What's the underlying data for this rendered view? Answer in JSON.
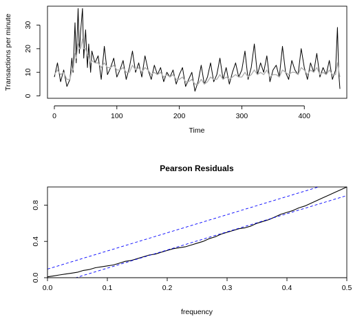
{
  "chart_data": [
    {
      "type": "line",
      "title": "",
      "xlabel": "Time",
      "ylabel": "Transactions  per minute",
      "xlim": [
        -11,
        468
      ],
      "ylim": [
        -1,
        38
      ],
      "x_ticks": [
        0,
        100,
        200,
        300,
        400
      ],
      "y_ticks": [
        0,
        10,
        20,
        30
      ],
      "x_tick_labels": [
        "0",
        "100",
        "200",
        "300",
        "400"
      ],
      "y_tick_labels": [
        "0",
        "10",
        "20",
        "30"
      ],
      "grid": false,
      "legend": "none",
      "series": [
        {
          "style": "observed",
          "color": "#000000",
          "x": [
            0,
            5,
            10,
            15,
            20,
            25,
            28,
            30,
            33,
            35,
            38,
            40,
            42,
            45,
            47,
            50,
            53,
            55,
            58,
            60,
            65,
            70,
            75,
            80,
            85,
            90,
            95,
            100,
            105,
            110,
            115,
            120,
            125,
            130,
            135,
            140,
            145,
            150,
            155,
            160,
            165,
            170,
            175,
            180,
            185,
            190,
            195,
            200,
            205,
            210,
            215,
            220,
            225,
            230,
            235,
            240,
            245,
            250,
            255,
            260,
            265,
            270,
            275,
            280,
            285,
            290,
            295,
            300,
            305,
            310,
            315,
            320,
            325,
            330,
            335,
            340,
            345,
            350,
            355,
            360,
            365,
            370,
            375,
            380,
            385,
            390,
            395,
            400,
            405,
            410,
            415,
            420,
            425,
            430,
            435,
            440,
            445,
            450,
            453,
            455,
            457
          ],
          "y": [
            8,
            14,
            6,
            11,
            4,
            7,
            16,
            10,
            31,
            14,
            37,
            18,
            27,
            37,
            16,
            28,
            12,
            22,
            10,
            19,
            14,
            17,
            7,
            21,
            9,
            12,
            16,
            8,
            11,
            15,
            7,
            12,
            19,
            10,
            14,
            8,
            17,
            11,
            7,
            13,
            9,
            12,
            6,
            10,
            8,
            11,
            5,
            9,
            12,
            4,
            7,
            10,
            2,
            6,
            13,
            5,
            8,
            14,
            6,
            9,
            16,
            7,
            12,
            5,
            10,
            14,
            8,
            11,
            19,
            7,
            12,
            22,
            9,
            14,
            10,
            17,
            6,
            11,
            13,
            8,
            21,
            10,
            7,
            15,
            11,
            9,
            20,
            12,
            7,
            14,
            10,
            18,
            8,
            12,
            9,
            15,
            7,
            11,
            29,
            10,
            3
          ]
        },
        {
          "style": "fitted",
          "color": "#b0b0b0",
          "x": [
            0,
            5,
            10,
            15,
            20,
            25,
            28,
            30,
            33,
            35,
            38,
            40,
            42,
            45,
            47,
            50,
            53,
            55,
            58,
            60,
            65,
            70,
            75,
            80,
            85,
            90,
            95,
            100,
            105,
            110,
            115,
            120,
            125,
            130,
            135,
            140,
            145,
            150,
            155,
            160,
            165,
            170,
            175,
            180,
            185,
            190,
            195,
            200,
            205,
            210,
            215,
            220,
            225,
            230,
            235,
            240,
            245,
            250,
            255,
            260,
            265,
            270,
            275,
            280,
            285,
            290,
            295,
            300,
            305,
            310,
            315,
            320,
            325,
            330,
            335,
            340,
            345,
            350,
            355,
            360,
            365,
            370,
            375,
            380,
            385,
            390,
            395,
            400,
            405,
            410,
            415,
            420,
            425,
            430,
            435,
            440,
            445,
            450,
            453,
            455,
            457
          ],
          "y": [
            9,
            11,
            9,
            10,
            7,
            7,
            11,
            11,
            18,
            16,
            22,
            20,
            20,
            24,
            20,
            20,
            17,
            17,
            14,
            15,
            14,
            14,
            12,
            14,
            12,
            12,
            13,
            11,
            11,
            12,
            10,
            10,
            13,
            11,
            12,
            10,
            12,
            11,
            9,
            10,
            9,
            10,
            8,
            9,
            8,
            9,
            7,
            7,
            8,
            6,
            6,
            7,
            5,
            5,
            7,
            5,
            6,
            8,
            7,
            7,
            9,
            7,
            8,
            7,
            8,
            9,
            8,
            8,
            10,
            8,
            9,
            11,
            9,
            10,
            9,
            11,
            8,
            9,
            9,
            8,
            11,
            10,
            9,
            10,
            10,
            9,
            12,
            11,
            9,
            11,
            10,
            12,
            9,
            10,
            9,
            11,
            9,
            9,
            14,
            11,
            8
          ]
        }
      ]
    },
    {
      "type": "line",
      "title": "Pearson Residuals",
      "xlabel": "frequency",
      "ylabel": "",
      "xlim": [
        0,
        0.5
      ],
      "ylim": [
        0,
        1
      ],
      "x_ticks": [
        0,
        0.1,
        0.2,
        0.3,
        0.4,
        0.5
      ],
      "y_ticks": [
        0,
        0.4,
        0.8
      ],
      "x_tick_labels": [
        "0.0",
        "0.1",
        "0.2",
        "0.3",
        "0.4",
        "0.5"
      ],
      "y_tick_labels": [
        "0.0",
        "0.4",
        "0.8"
      ],
      "grid": false,
      "legend": "none",
      "series": [
        {
          "style": "cumulative periodogram",
          "color": "#000000",
          "x": [
            0,
            0.01,
            0.02,
            0.03,
            0.04,
            0.05,
            0.06,
            0.07,
            0.08,
            0.09,
            0.1,
            0.11,
            0.12,
            0.13,
            0.14,
            0.15,
            0.16,
            0.17,
            0.18,
            0.19,
            0.2,
            0.21,
            0.22,
            0.23,
            0.24,
            0.25,
            0.26,
            0.27,
            0.28,
            0.29,
            0.3,
            0.31,
            0.32,
            0.33,
            0.34,
            0.35,
            0.36,
            0.37,
            0.38,
            0.39,
            0.4,
            0.41,
            0.42,
            0.43,
            0.44,
            0.45,
            0.46,
            0.47,
            0.48,
            0.49,
            0.5
          ],
          "y": [
            0.01,
            0.02,
            0.03,
            0.04,
            0.05,
            0.06,
            0.08,
            0.09,
            0.11,
            0.12,
            0.13,
            0.14,
            0.16,
            0.18,
            0.19,
            0.21,
            0.23,
            0.25,
            0.26,
            0.28,
            0.3,
            0.32,
            0.33,
            0.34,
            0.36,
            0.38,
            0.4,
            0.43,
            0.45,
            0.48,
            0.5,
            0.52,
            0.54,
            0.55,
            0.57,
            0.6,
            0.62,
            0.64,
            0.67,
            0.7,
            0.72,
            0.74,
            0.77,
            0.79,
            0.82,
            0.85,
            0.88,
            0.91,
            0.94,
            0.97,
            1.0
          ]
        },
        {
          "style": "upper bound",
          "color": "#0000ff",
          "dash": true,
          "x": [
            0,
            0.5
          ],
          "y": [
            0.095,
            1.095
          ]
        },
        {
          "style": "lower bound",
          "color": "#0000ff",
          "dash": true,
          "x": [
            0,
            0.5
          ],
          "y": [
            -0.095,
            0.905
          ]
        }
      ]
    }
  ]
}
